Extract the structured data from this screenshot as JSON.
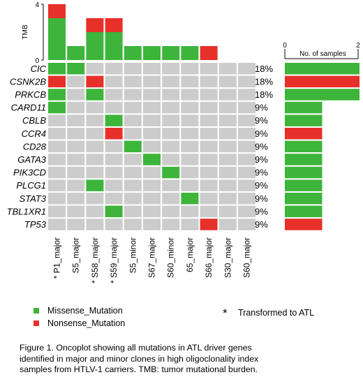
{
  "colors": {
    "missense": "#3db53a",
    "nonsense": "#e8302a",
    "empty": "#cccccc",
    "background": "#ffffff"
  },
  "chart_data": {
    "type": "oncoplot",
    "samples": [
      "P1_major",
      "S5_major",
      "S58_major",
      "S59_major",
      "S5_minor",
      "S67_major",
      "S60_minor",
      "65_major",
      "S66_major",
      "S30_major",
      "S60_major"
    ],
    "sample_labels": [
      "* P1_major",
      "S5_major",
      "* S58_major",
      "* S59_major",
      "S5_minor",
      "S67_major",
      "S60_minor",
      "65_major",
      "S66_major",
      "S30_major",
      "S60_major"
    ],
    "transformed_samples": [
      "P1_major",
      "S58_major",
      "S59_major"
    ],
    "genes": [
      "CIC",
      "CSNK2B",
      "PRKCB",
      "CARD11",
      "CBLB",
      "CCR4",
      "CD28",
      "GATA3",
      "PIK3CD",
      "PLCG1",
      "STAT3",
      "TBL1XR1",
      "TP53"
    ],
    "gene_percent": [
      "18%",
      "18%",
      "18%",
      "9%",
      "9%",
      "9%",
      "9%",
      "9%",
      "9%",
      "9%",
      "9%",
      "9%",
      "9%"
    ],
    "mutations": [
      {
        "gene": "CIC",
        "sample": "P1_major",
        "type": "Missense_Mutation"
      },
      {
        "gene": "CIC",
        "sample": "S5_major",
        "type": "Missense_Mutation"
      },
      {
        "gene": "CSNK2B",
        "sample": "P1_major",
        "type": "Nonsense_Mutation"
      },
      {
        "gene": "CSNK2B",
        "sample": "S58_major",
        "type": "Nonsense_Mutation"
      },
      {
        "gene": "PRKCB",
        "sample": "P1_major",
        "type": "Missense_Mutation"
      },
      {
        "gene": "PRKCB",
        "sample": "S58_major",
        "type": "Missense_Mutation"
      },
      {
        "gene": "CARD11",
        "sample": "P1_major",
        "type": "Missense_Mutation"
      },
      {
        "gene": "CBLB",
        "sample": "S59_major",
        "type": "Missense_Mutation"
      },
      {
        "gene": "CCR4",
        "sample": "S59_major",
        "type": "Nonsense_Mutation"
      },
      {
        "gene": "CD28",
        "sample": "S5_minor",
        "type": "Missense_Mutation"
      },
      {
        "gene": "GATA3",
        "sample": "S67_major",
        "type": "Missense_Mutation"
      },
      {
        "gene": "PIK3CD",
        "sample": "S60_minor",
        "type": "Missense_Mutation"
      },
      {
        "gene": "PLCG1",
        "sample": "S58_major",
        "type": "Missense_Mutation"
      },
      {
        "gene": "STAT3",
        "sample": "65_major",
        "type": "Missense_Mutation"
      },
      {
        "gene": "TBL1XR1",
        "sample": "S59_major",
        "type": "Missense_Mutation"
      },
      {
        "gene": "TP53",
        "sample": "S66_major",
        "type": "Nonsense_Mutation"
      }
    ],
    "tmb": {
      "ylabel": "TMB",
      "ylim": [
        0,
        4
      ],
      "ticks": [
        "4",
        "0"
      ],
      "values": [
        {
          "sample": "P1_major",
          "missense": 3,
          "nonsense": 1
        },
        {
          "sample": "S5_major",
          "missense": 1,
          "nonsense": 0
        },
        {
          "sample": "S58_major",
          "missense": 2,
          "nonsense": 1
        },
        {
          "sample": "S59_major",
          "missense": 2,
          "nonsense": 1
        },
        {
          "sample": "S5_minor",
          "missense": 1,
          "nonsense": 0
        },
        {
          "sample": "S67_major",
          "missense": 1,
          "nonsense": 0
        },
        {
          "sample": "S60_minor",
          "missense": 1,
          "nonsense": 0
        },
        {
          "sample": "65_major",
          "missense": 1,
          "nonsense": 0
        },
        {
          "sample": "S66_major",
          "missense": 0,
          "nonsense": 1
        },
        {
          "sample": "S30_major",
          "missense": 0,
          "nonsense": 0
        },
        {
          "sample": "S60_major",
          "missense": 0,
          "nonsense": 0
        }
      ]
    },
    "gene_counts": {
      "xlabel": "No. of samples",
      "xlim": [
        0,
        2
      ],
      "ticks": [
        "0",
        "2"
      ],
      "values": [
        {
          "gene": "CIC",
          "count": 2,
          "type": "Missense_Mutation"
        },
        {
          "gene": "CSNK2B",
          "count": 2,
          "type": "Nonsense_Mutation"
        },
        {
          "gene": "PRKCB",
          "count": 2,
          "type": "Missense_Mutation"
        },
        {
          "gene": "CARD11",
          "count": 1,
          "type": "Missense_Mutation"
        },
        {
          "gene": "CBLB",
          "count": 1,
          "type": "Missense_Mutation"
        },
        {
          "gene": "CCR4",
          "count": 1,
          "type": "Nonsense_Mutation"
        },
        {
          "gene": "CD28",
          "count": 1,
          "type": "Missense_Mutation"
        },
        {
          "gene": "GATA3",
          "count": 1,
          "type": "Missense_Mutation"
        },
        {
          "gene": "PIK3CD",
          "count": 1,
          "type": "Missense_Mutation"
        },
        {
          "gene": "PLCG1",
          "count": 1,
          "type": "Missense_Mutation"
        },
        {
          "gene": "STAT3",
          "count": 1,
          "type": "Missense_Mutation"
        },
        {
          "gene": "TBL1XR1",
          "count": 1,
          "type": "Missense_Mutation"
        },
        {
          "gene": "TP53",
          "count": 1,
          "type": "Nonsense_Mutation"
        }
      ]
    },
    "legend": {
      "items": [
        {
          "label": "Missense_Mutation",
          "type": "Missense_Mutation"
        },
        {
          "label": "Nonsense_Mutation",
          "type": "Nonsense_Mutation"
        }
      ],
      "marker_symbol": "*",
      "marker_text": "Transformed  to ATL"
    }
  },
  "caption": [
    "Figure 1. Oncoplot showing all mutations in ATL driver genes",
    "identified in major and minor clones in high oligoclonality index",
    "samples from HTLV-1 carriers. TMB: tumor mutational burden."
  ]
}
